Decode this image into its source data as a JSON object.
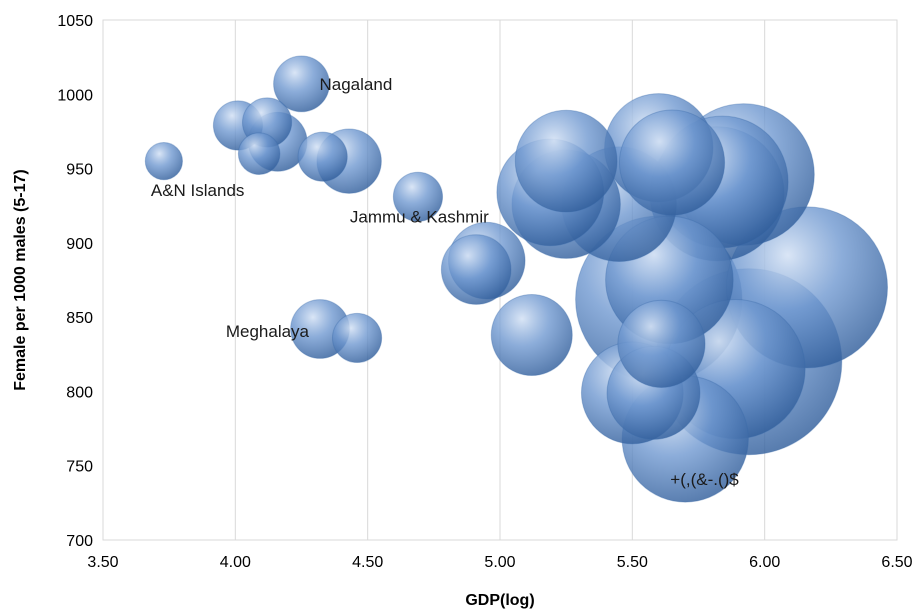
{
  "chart_data": {
    "type": "bubble",
    "title": "",
    "xlabel": "GDP(log)",
    "ylabel": "Female per 1000 males (5-17)",
    "xlim": [
      3.5,
      6.5
    ],
    "ylim": [
      700,
      1050
    ],
    "x_ticks": [
      "3.50",
      "4.00",
      "4.50",
      "5.00",
      "5.50",
      "6.00",
      "6.50"
    ],
    "y_ticks": [
      "700",
      "750",
      "800",
      "850",
      "900",
      "950",
      "1000",
      "1050"
    ],
    "grid": "vertical",
    "legend": "none",
    "bubble_color": "#4f81bd",
    "points": [
      {
        "x": 3.73,
        "y": 955,
        "size": 4
      },
      {
        "x": 4.01,
        "y": 979,
        "size": 7
      },
      {
        "x": 4.09,
        "y": 960,
        "size": 5
      },
      {
        "x": 4.12,
        "y": 981,
        "size": 7
      },
      {
        "x": 4.16,
        "y": 968,
        "size": 10
      },
      {
        "x": 4.25,
        "y": 1007,
        "size": 9
      },
      {
        "x": 4.33,
        "y": 958,
        "size": 7
      },
      {
        "x": 4.32,
        "y": 842,
        "size": 10
      },
      {
        "x": 4.43,
        "y": 955,
        "size": 12
      },
      {
        "x": 4.46,
        "y": 836,
        "size": 7
      },
      {
        "x": 4.69,
        "y": 931,
        "size": 7
      },
      {
        "x": 4.91,
        "y": 882,
        "size": 14
      },
      {
        "x": 4.95,
        "y": 888,
        "size": 17
      },
      {
        "x": 5.12,
        "y": 838,
        "size": 19
      },
      {
        "x": 5.25,
        "y": 955,
        "size": 30
      },
      {
        "x": 5.19,
        "y": 934,
        "size": 33
      },
      {
        "x": 5.25,
        "y": 926,
        "size": 34
      },
      {
        "x": 5.45,
        "y": 926,
        "size": 38
      },
      {
        "x": 5.5,
        "y": 799,
        "size": 30
      },
      {
        "x": 5.58,
        "y": 799,
        "size": 25
      },
      {
        "x": 5.61,
        "y": 832,
        "size": 22
      },
      {
        "x": 5.6,
        "y": 964,
        "size": 34
      },
      {
        "x": 5.65,
        "y": 954,
        "size": 32
      },
      {
        "x": 5.6,
        "y": 862,
        "size": 80
      },
      {
        "x": 5.64,
        "y": 875,
        "size": 47
      },
      {
        "x": 5.7,
        "y": 768,
        "size": 46
      },
      {
        "x": 5.82,
        "y": 933,
        "size": 52
      },
      {
        "x": 5.84,
        "y": 941,
        "size": 50
      },
      {
        "x": 5.92,
        "y": 946,
        "size": 58
      },
      {
        "x": 5.94,
        "y": 820,
        "size": 100
      },
      {
        "x": 5.89,
        "y": 815,
        "size": 56
      },
      {
        "x": 6.16,
        "y": 870,
        "size": 75
      }
    ],
    "annotations": [
      {
        "text": "Nagaland",
        "x": 4.25,
        "y": 1007
      },
      {
        "text": "A&N Islands",
        "x": 3.73,
        "y": 955
      },
      {
        "text": "Jammu & Kashmir",
        "x": 4.95,
        "y": 888
      },
      {
        "text": "Meghalaya",
        "x": 4.32,
        "y": 842
      },
      {
        "text": "+(,(&-.()$",
        "x": 5.7,
        "y": 768
      }
    ]
  }
}
